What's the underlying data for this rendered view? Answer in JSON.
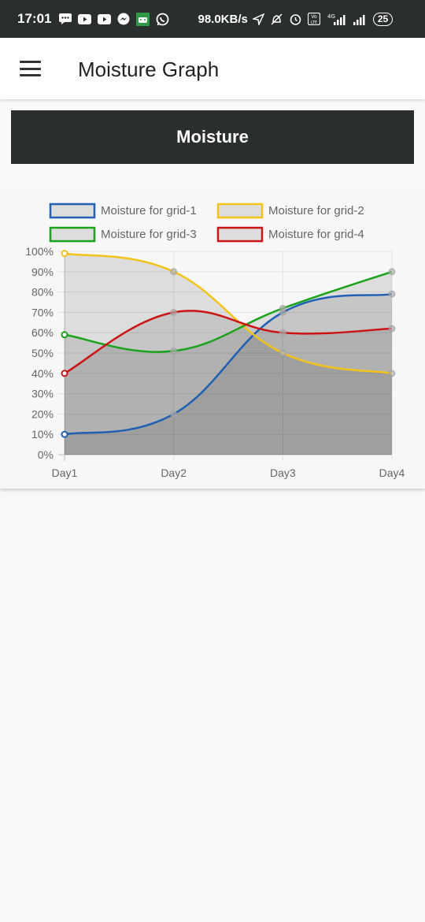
{
  "status_bar": {
    "time": "17:01",
    "speed": "98.0KB/s",
    "network": "4G",
    "battery": "25",
    "icons_left": [
      "message-icon",
      "youtube-icon",
      "youtube-icon",
      "messenger-icon",
      "android-icon",
      "whatsapp-icon"
    ],
    "icons_right": [
      "location-arrow-icon",
      "alarm-off-icon",
      "alarm-icon",
      "volte-icon",
      "signal-icon",
      "signal-icon",
      "battery-icon"
    ]
  },
  "app_bar": {
    "title": "Moisture Graph",
    "menu_icon": "hamburger-menu-icon"
  },
  "banner": {
    "title": "Moisture"
  },
  "chart_data": {
    "type": "line",
    "title": "",
    "xlabel": "",
    "ylabel": "",
    "categories": [
      "Day1",
      "Day2",
      "Day3",
      "Day4"
    ],
    "ylim": [
      0,
      100
    ],
    "yticks": [
      "0%",
      "10%",
      "20%",
      "30%",
      "40%",
      "50%",
      "60%",
      "70%",
      "80%",
      "90%",
      "100%"
    ],
    "grid": true,
    "fill": true,
    "fill_color": "rgba(0,0,0,0.1)",
    "legend_position": "top",
    "series": [
      {
        "name": "Moisture for grid-1",
        "values": [
          10,
          20,
          70,
          79
        ],
        "color": "#1f5fb4"
      },
      {
        "name": "Moisture for grid-2",
        "values": [
          99,
          90,
          50,
          40
        ],
        "color": "#f4c31a"
      },
      {
        "name": "Moisture for grid-3",
        "values": [
          59,
          51,
          72,
          90
        ],
        "color": "#1aa31a"
      },
      {
        "name": "Moisture for grid-4",
        "values": [
          40,
          70,
          60,
          62
        ],
        "color": "#cc1414"
      }
    ]
  }
}
